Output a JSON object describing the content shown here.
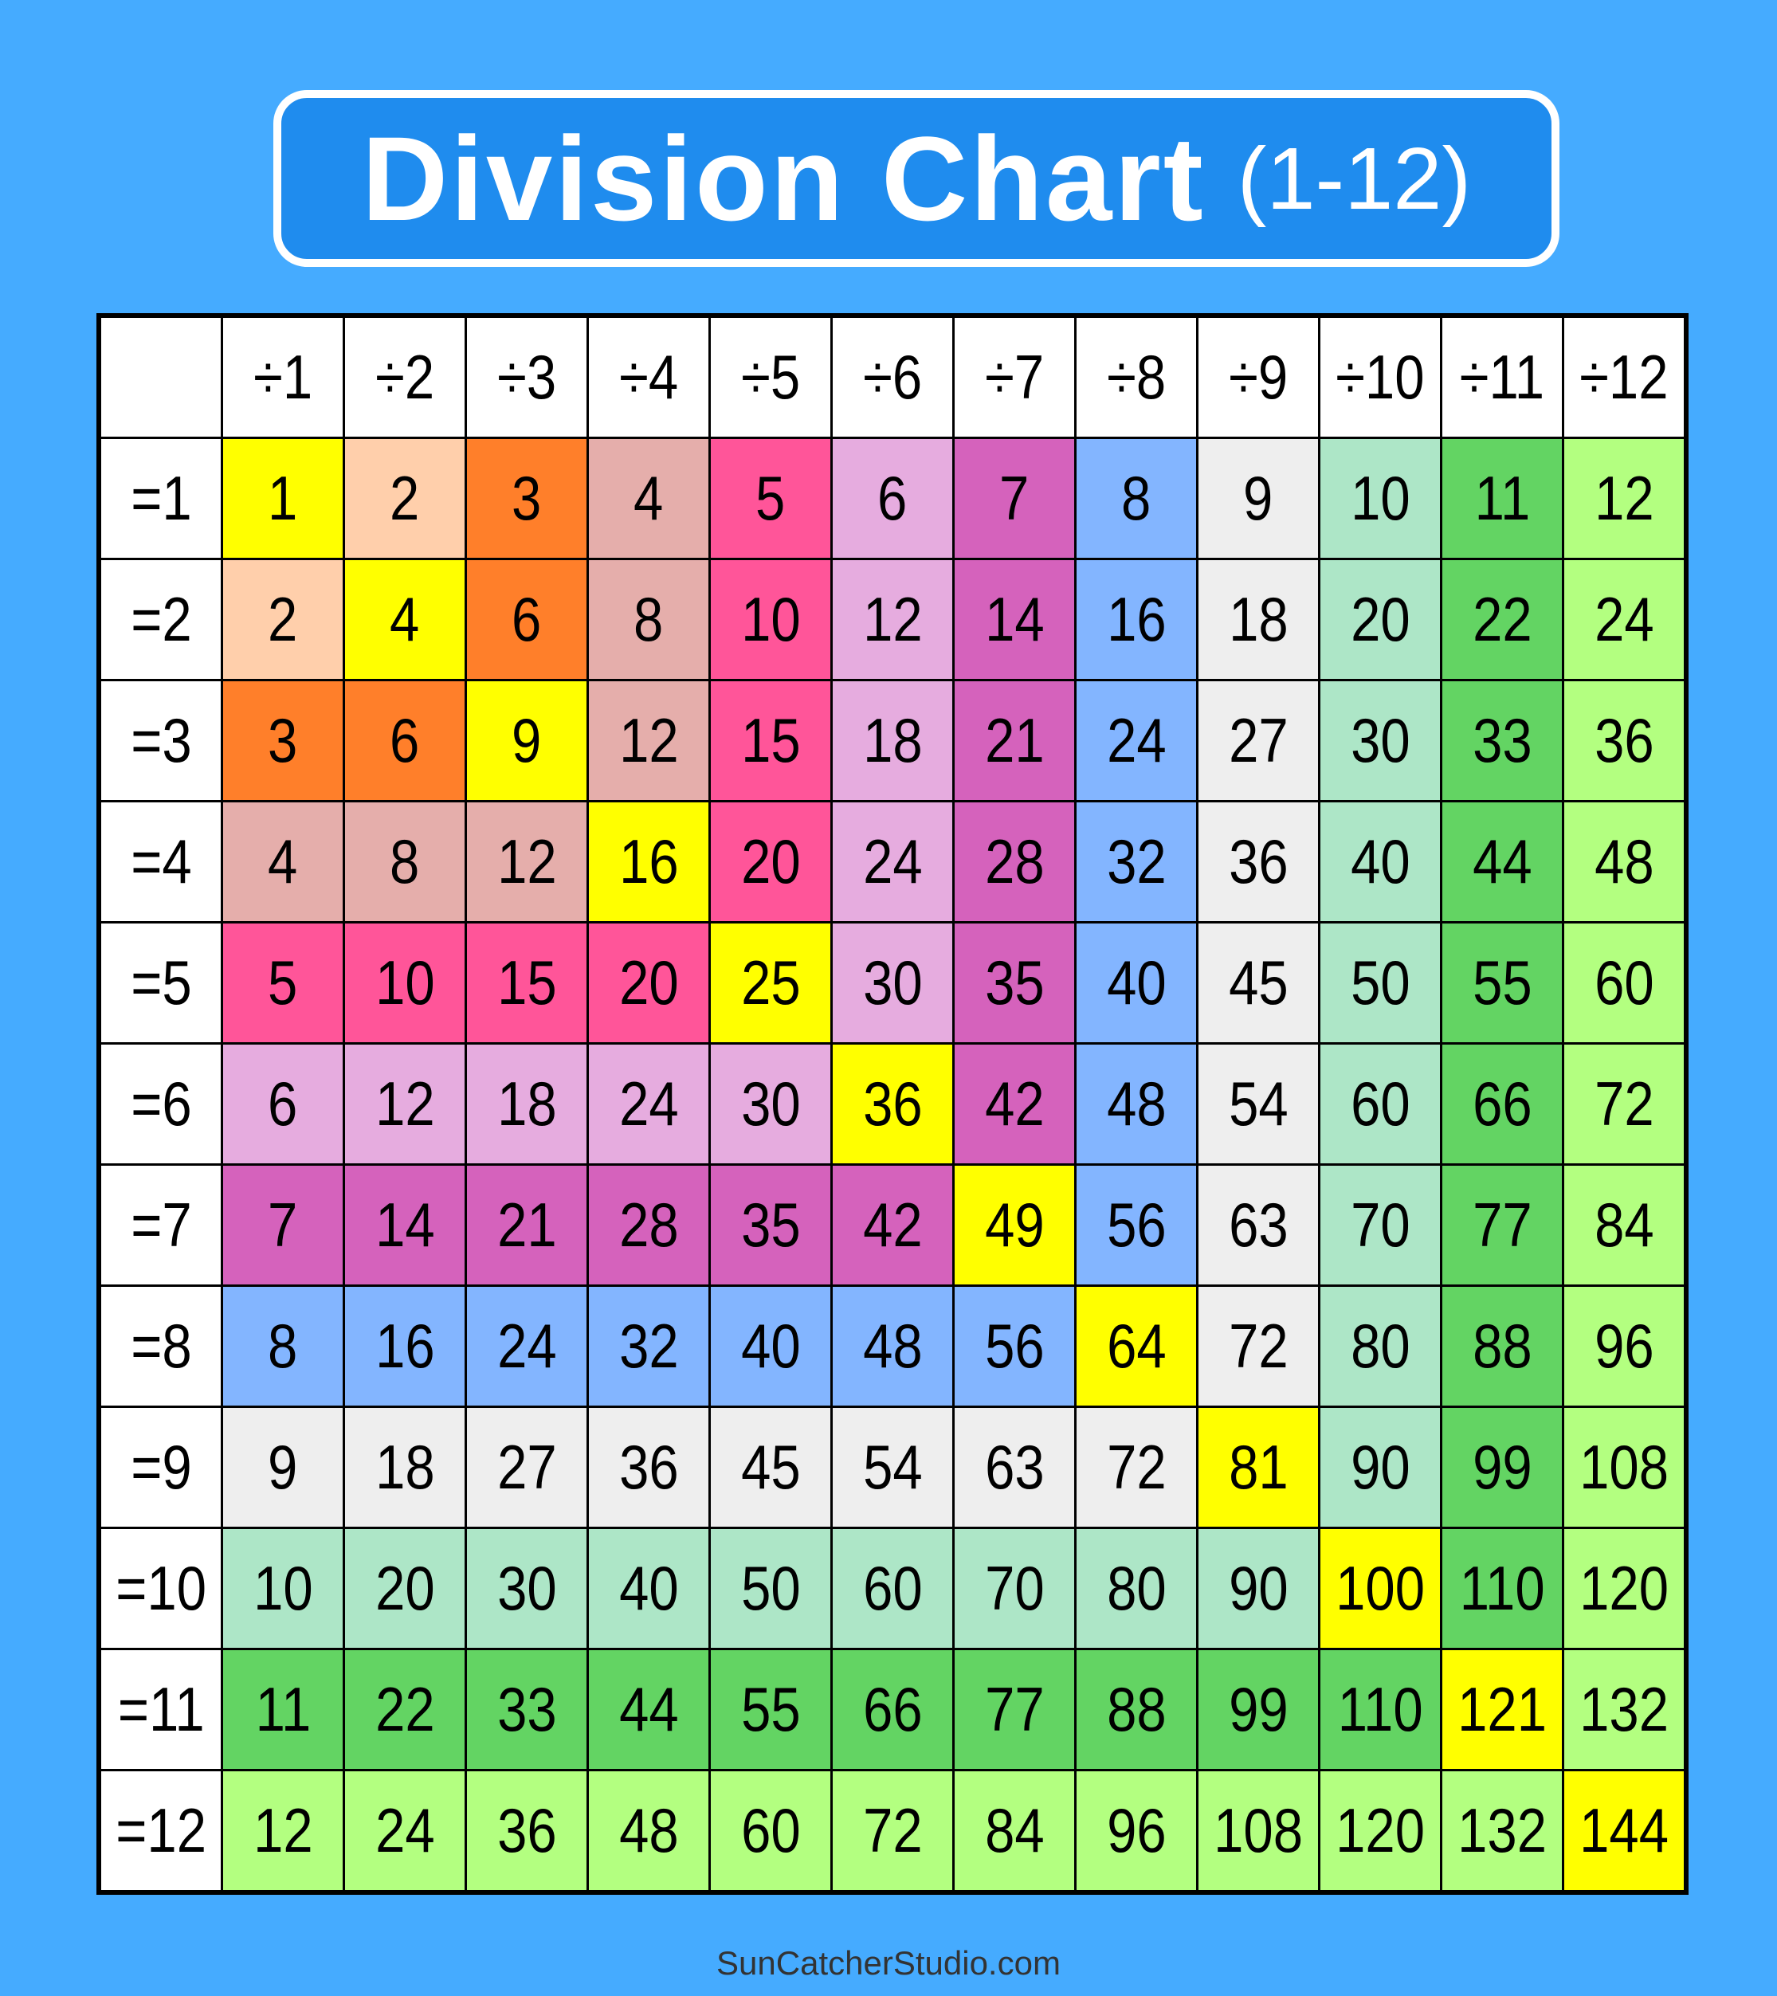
{
  "title": {
    "main": "Division Chart",
    "sub": "(1-12)"
  },
  "footer": "SunCatcherStudio.com",
  "chart_data": {
    "type": "table",
    "column_headers": [
      "÷1",
      "÷2",
      "÷3",
      "÷4",
      "÷5",
      "÷6",
      "÷7",
      "÷8",
      "÷9",
      "÷10",
      "÷11",
      "÷12"
    ],
    "row_headers": [
      "=1",
      "=2",
      "=3",
      "=4",
      "=5",
      "=6",
      "=7",
      "=8",
      "=9",
      "=10",
      "=11",
      "=12"
    ],
    "rows": [
      [
        1,
        2,
        3,
        4,
        5,
        6,
        7,
        8,
        9,
        10,
        11,
        12
      ],
      [
        2,
        4,
        6,
        8,
        10,
        12,
        14,
        16,
        18,
        20,
        22,
        24
      ],
      [
        3,
        6,
        9,
        12,
        15,
        18,
        21,
        24,
        27,
        30,
        33,
        36
      ],
      [
        4,
        8,
        12,
        16,
        20,
        24,
        28,
        32,
        36,
        40,
        44,
        48
      ],
      [
        5,
        10,
        15,
        20,
        25,
        30,
        35,
        40,
        45,
        50,
        55,
        60
      ],
      [
        6,
        12,
        18,
        24,
        30,
        36,
        42,
        48,
        54,
        60,
        66,
        72
      ],
      [
        7,
        14,
        21,
        28,
        35,
        42,
        49,
        56,
        63,
        70,
        77,
        84
      ],
      [
        8,
        16,
        24,
        32,
        40,
        48,
        56,
        64,
        72,
        80,
        88,
        96
      ],
      [
        9,
        18,
        27,
        36,
        45,
        54,
        63,
        72,
        81,
        90,
        99,
        108
      ],
      [
        10,
        20,
        30,
        40,
        50,
        60,
        70,
        80,
        90,
        100,
        110,
        120
      ],
      [
        11,
        22,
        33,
        44,
        55,
        66,
        77,
        88,
        99,
        110,
        121,
        132
      ],
      [
        12,
        24,
        36,
        48,
        60,
        72,
        84,
        96,
        108,
        120,
        132,
        144
      ]
    ],
    "colors": {
      "diagonal": "#ffff00",
      "band": [
        "#ffff00",
        "#ffcfab",
        "#ff7f2a",
        "#e5aeab",
        "#ff5599",
        "#e6acdf",
        "#d562bc",
        "#83b5ff",
        "#eeeeee",
        "#ade6c7",
        "#63d463",
        "#b3ff80"
      ],
      "header": "#ffffff",
      "background": "#45abff",
      "title_box": "#1f8cee"
    }
  }
}
